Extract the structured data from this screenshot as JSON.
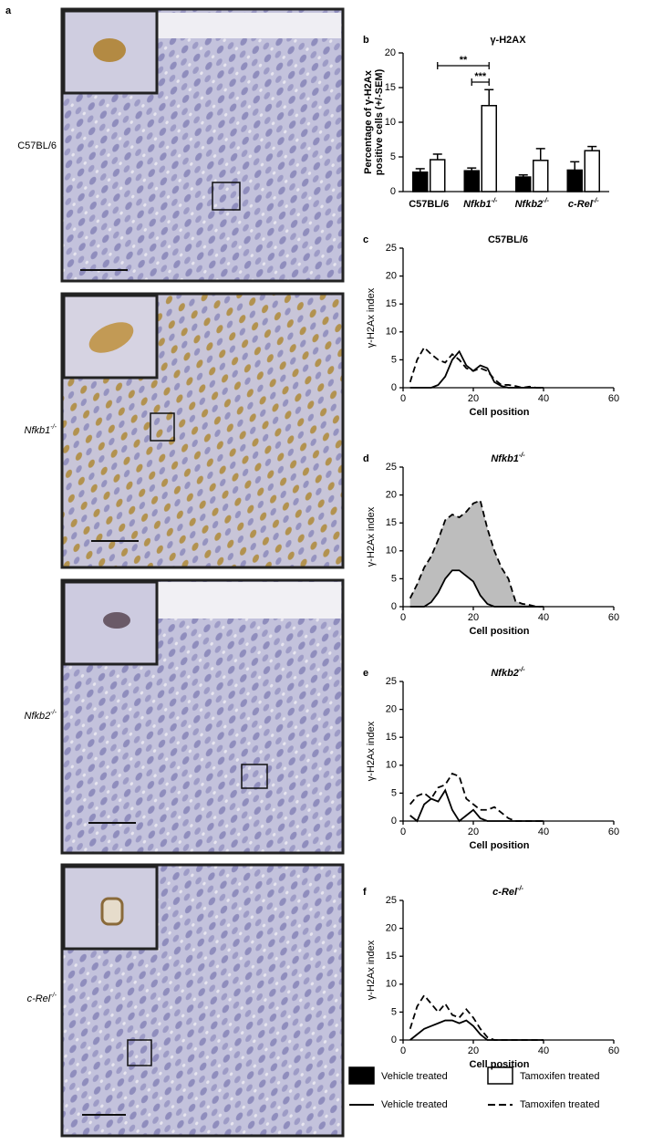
{
  "panels": [
    {
      "letter": "a",
      "label": {
        "name": "C57BL/6"
      }
    },
    {
      "label": {
        "name": "Nfkb1",
        "sup": "-/-"
      }
    },
    {
      "label": {
        "name": "Nfkb2",
        "sup": "-/-"
      }
    },
    {
      "label": {
        "name": "c-Rel",
        "sup": "-/-"
      }
    }
  ],
  "chart_data": [
    {
      "type": "bar",
      "letter": "b",
      "title": "γ-H2AX",
      "ylabel": [
        "Percentage of γ-H2Ax",
        "positive cells (+/-SEM)"
      ],
      "categories": [
        {
          "name": "C57BL/6"
        },
        {
          "name": "Nfkb1",
          "sup": "-/-"
        },
        {
          "name": "Nfkb2",
          "sup": "-/-"
        },
        {
          "name": "c-Rel",
          "sup": "-/-"
        }
      ],
      "series": [
        {
          "name": "Vehicle treated",
          "color": "#000000",
          "values": [
            2.8,
            3.0,
            2.1,
            3.1
          ],
          "errors": [
            0.5,
            0.4,
            0.3,
            1.2
          ]
        },
        {
          "name": "Tamoxifen treated",
          "color": "#ffffff",
          "values": [
            4.6,
            12.4,
            4.5,
            5.9
          ],
          "errors": [
            0.8,
            2.3,
            1.7,
            0.6
          ]
        }
      ],
      "annotations": [
        "**",
        "***"
      ],
      "ylim": [
        0,
        20
      ],
      "yticks": [
        0,
        5,
        10,
        15,
        20
      ],
      "legend": "bottom"
    },
    {
      "type": "line",
      "letter": "c",
      "title": {
        "name": "C57BL/6"
      },
      "xlabel": "Cell position",
      "ylabel": "γ-H2Ax index",
      "x": [
        2,
        4,
        6,
        8,
        10,
        12,
        14,
        16,
        18,
        20,
        22,
        24,
        26,
        28,
        30,
        32,
        34,
        36,
        38,
        40
      ],
      "series": [
        {
          "name": "Vehicle treated",
          "color": "#000000",
          "dashed": false,
          "values": [
            0,
            0,
            0,
            0,
            0.5,
            2,
            5,
            6.5,
            4,
            3,
            4,
            3.5,
            1,
            0.3,
            0,
            0,
            0,
            0,
            0,
            0
          ]
        },
        {
          "name": "Tamoxifen treated",
          "color": "#000000",
          "dashed": true,
          "values": [
            1,
            5,
            7.2,
            6,
            5,
            4.5,
            6,
            5,
            3.5,
            3,
            3.5,
            3,
            1.5,
            0.5,
            0.5,
            0.3,
            0,
            0.2,
            0,
            0
          ]
        }
      ],
      "xlim": [
        0,
        60
      ],
      "xticks": [
        0,
        20,
        40,
        60
      ],
      "ylim": [
        0,
        25
      ],
      "yticks": [
        0,
        5,
        10,
        15,
        20,
        25
      ],
      "legend": "bottom"
    },
    {
      "type": "line",
      "letter": "d",
      "title": {
        "name": "Nfkb1",
        "sup": "-/-"
      },
      "xlabel": "Cell position",
      "ylabel": "γ-H2Ax index",
      "x": [
        2,
        4,
        6,
        8,
        10,
        12,
        14,
        16,
        18,
        20,
        22,
        24,
        26,
        28,
        30,
        32,
        34,
        36,
        38,
        40
      ],
      "series": [
        {
          "name": "Vehicle treated",
          "color": "#000000",
          "dashed": false,
          "values": [
            0,
            0,
            0,
            0.8,
            2.5,
            5,
            6.5,
            6.5,
            5.5,
            4.5,
            2,
            0.5,
            0,
            0,
            0,
            0,
            0,
            0,
            0,
            0
          ]
        },
        {
          "name": "Tamoxifen treated",
          "color": "#000000",
          "dashed": true,
          "values": [
            1.5,
            4,
            7,
            9,
            12,
            15.5,
            16.5,
            16,
            17,
            18.5,
            19,
            14,
            10,
            7,
            5,
            1,
            0.5,
            0.3,
            0,
            0
          ]
        }
      ],
      "fill_between": "#bdbdbd",
      "xlim": [
        0,
        60
      ],
      "xticks": [
        0,
        20,
        40,
        60
      ],
      "ylim": [
        0,
        25
      ],
      "yticks": [
        0,
        5,
        10,
        15,
        20,
        25
      ]
    },
    {
      "type": "line",
      "letter": "e",
      "title": {
        "name": "Nfkb2",
        "sup": "-/-"
      },
      "xlabel": "Cell position",
      "ylabel": "γ-H2Ax index",
      "x": [
        2,
        4,
        6,
        8,
        10,
        12,
        14,
        16,
        18,
        20,
        22,
        24,
        26,
        28,
        30,
        32,
        34,
        36,
        38,
        40
      ],
      "series": [
        {
          "name": "Vehicle treated",
          "color": "#000000",
          "dashed": false,
          "values": [
            1,
            0,
            3,
            4,
            3.5,
            5.5,
            2,
            0,
            1,
            2,
            0.5,
            0,
            0,
            0,
            0,
            0,
            0,
            0,
            0,
            0
          ]
        },
        {
          "name": "Tamoxifen treated",
          "color": "#000000",
          "dashed": true,
          "values": [
            3,
            4.5,
            5,
            4,
            6,
            6.5,
            8.5,
            8,
            4,
            3,
            2,
            2,
            2.5,
            1.5,
            0.5,
            0,
            0,
            0,
            0,
            0
          ]
        }
      ],
      "xlim": [
        0,
        60
      ],
      "xticks": [
        0,
        20,
        40,
        60
      ],
      "ylim": [
        0,
        25
      ],
      "yticks": [
        0,
        5,
        10,
        15,
        20,
        25
      ]
    },
    {
      "type": "line",
      "letter": "f",
      "title": {
        "name": "c-Rel",
        "sup": "-/-"
      },
      "xlabel": "Cell position",
      "ylabel": "γ-H2Ax index",
      "x": [
        2,
        4,
        6,
        8,
        10,
        12,
        14,
        16,
        18,
        20,
        22,
        24,
        26,
        28,
        30,
        32,
        34,
        36,
        38,
        40
      ],
      "series": [
        {
          "name": "Vehicle treated",
          "color": "#000000",
          "dashed": false,
          "values": [
            0,
            1,
            2,
            2.5,
            3,
            3.5,
            3.5,
            3,
            3.5,
            2.5,
            1,
            0,
            0,
            0,
            0,
            0,
            0,
            0,
            0,
            0
          ]
        },
        {
          "name": "Tamoxifen treated",
          "color": "#000000",
          "dashed": true,
          "values": [
            2,
            6,
            8,
            6.5,
            5,
            6.5,
            4.5,
            4,
            5.5,
            4,
            2,
            0.5,
            0,
            0,
            0,
            0,
            0,
            0,
            0,
            0
          ]
        }
      ],
      "xlim": [
        0,
        60
      ],
      "xticks": [
        0,
        20,
        40,
        60
      ],
      "ylim": [
        0,
        25
      ],
      "yticks": [
        0,
        5,
        10,
        15,
        20,
        25
      ]
    }
  ]
}
